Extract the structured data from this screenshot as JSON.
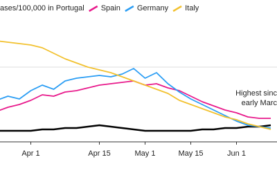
{
  "chart_data": {
    "type": "line",
    "categories": [
      null,
      null,
      null,
      "Apr 1",
      null,
      null,
      null,
      null,
      null,
      "Apr 15",
      null,
      null,
      null,
      "May 1",
      null,
      null,
      null,
      "May 15",
      null,
      null,
      null,
      "Jun 1",
      null,
      null,
      null
    ],
    "series": [
      {
        "name": "ases/100,000 in Portugal",
        "color": "#000000",
        "values": [
          8,
          8,
          8,
          8,
          9,
          9,
          10,
          10,
          11,
          12,
          11,
          10,
          9,
          8,
          8,
          8,
          8,
          8,
          9,
          9,
          10,
          10,
          11,
          11,
          12
        ]
      },
      {
        "name": "Spain",
        "color": "#e8198b",
        "values": [
          22,
          25,
          27,
          30,
          34,
          33,
          36,
          37,
          39,
          41,
          42,
          43,
          44,
          41,
          42,
          39,
          37,
          33,
          29,
          26,
          23,
          21,
          18,
          17,
          17
        ]
      },
      {
        "name": "Germany",
        "color": "#2a9df4",
        "values": [
          30,
          33,
          31,
          37,
          41,
          38,
          44,
          46,
          47,
          48,
          47,
          49,
          53,
          46,
          50,
          42,
          36,
          31,
          27,
          23,
          19,
          15,
          12,
          11,
          10
        ]
      },
      {
        "name": "Italy",
        "color": "#f2c12e",
        "values": [
          73,
          72,
          71,
          70,
          68,
          64,
          60,
          57,
          54,
          52,
          50,
          47,
          44,
          41,
          38,
          35,
          30,
          27,
          24,
          21,
          18,
          16,
          13,
          11,
          9
        ]
      }
    ],
    "ylim": [
      0,
      100
    ],
    "annotations": [
      "Highest sinc",
      "early Marc"
    ]
  }
}
